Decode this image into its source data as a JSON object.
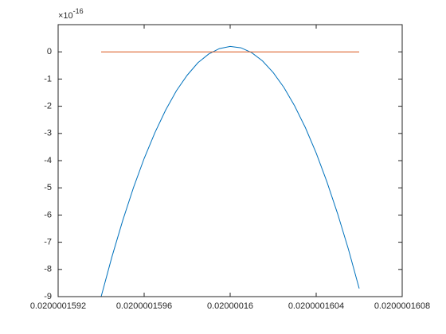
{
  "chart_data": {
    "type": "line",
    "y_multiplier": {
      "base": "×10",
      "power": "-16"
    },
    "x": [
      0.0200001594,
      0.02000015945,
      0.0200001595,
      0.02000015955,
      0.0200001596,
      0.02000015965,
      0.0200001597,
      0.02000015975,
      0.0200001598,
      0.02000015985,
      0.0200001599,
      0.02000015995,
      0.02000016,
      0.02000016005,
      0.0200001601,
      0.02000016015,
      0.0200001602,
      0.02000016025,
      0.0200001603,
      0.02000016035,
      0.0200001604,
      0.02000016045,
      0.0200001605,
      0.02000016055,
      0.0200001606
    ],
    "series": [
      {
        "color": "#0072bd",
        "values": [
          -9.0,
          -7.54,
          -6.21,
          -5.0,
          -3.92,
          -2.97,
          -2.14,
          -1.43,
          -0.86,
          -0.4,
          -0.08,
          0.12,
          0.2,
          0.15,
          -0.03,
          -0.33,
          -0.76,
          -1.31,
          -1.99,
          -2.79,
          -3.72,
          -4.78,
          -5.96,
          -7.26,
          -8.7
        ]
      },
      {
        "color": "#d95319",
        "values": [
          0,
          0,
          0,
          0,
          0,
          0,
          0,
          0,
          0,
          0,
          0,
          0,
          0,
          0,
          0,
          0,
          0,
          0,
          0,
          0,
          0,
          0,
          0,
          0,
          0
        ]
      }
    ],
    "xlim": [
      0.0200001592,
      0.0200001608
    ],
    "xticks": [
      0.0200001592,
      0.0200001596,
      0.02000016,
      0.0200001604,
      0.0200001608
    ],
    "ylim": [
      -9,
      1
    ],
    "yticks": [
      -9,
      -8,
      -7,
      -6,
      -5,
      -4,
      -3,
      -2,
      -1,
      0
    ],
    "grid": false
  }
}
